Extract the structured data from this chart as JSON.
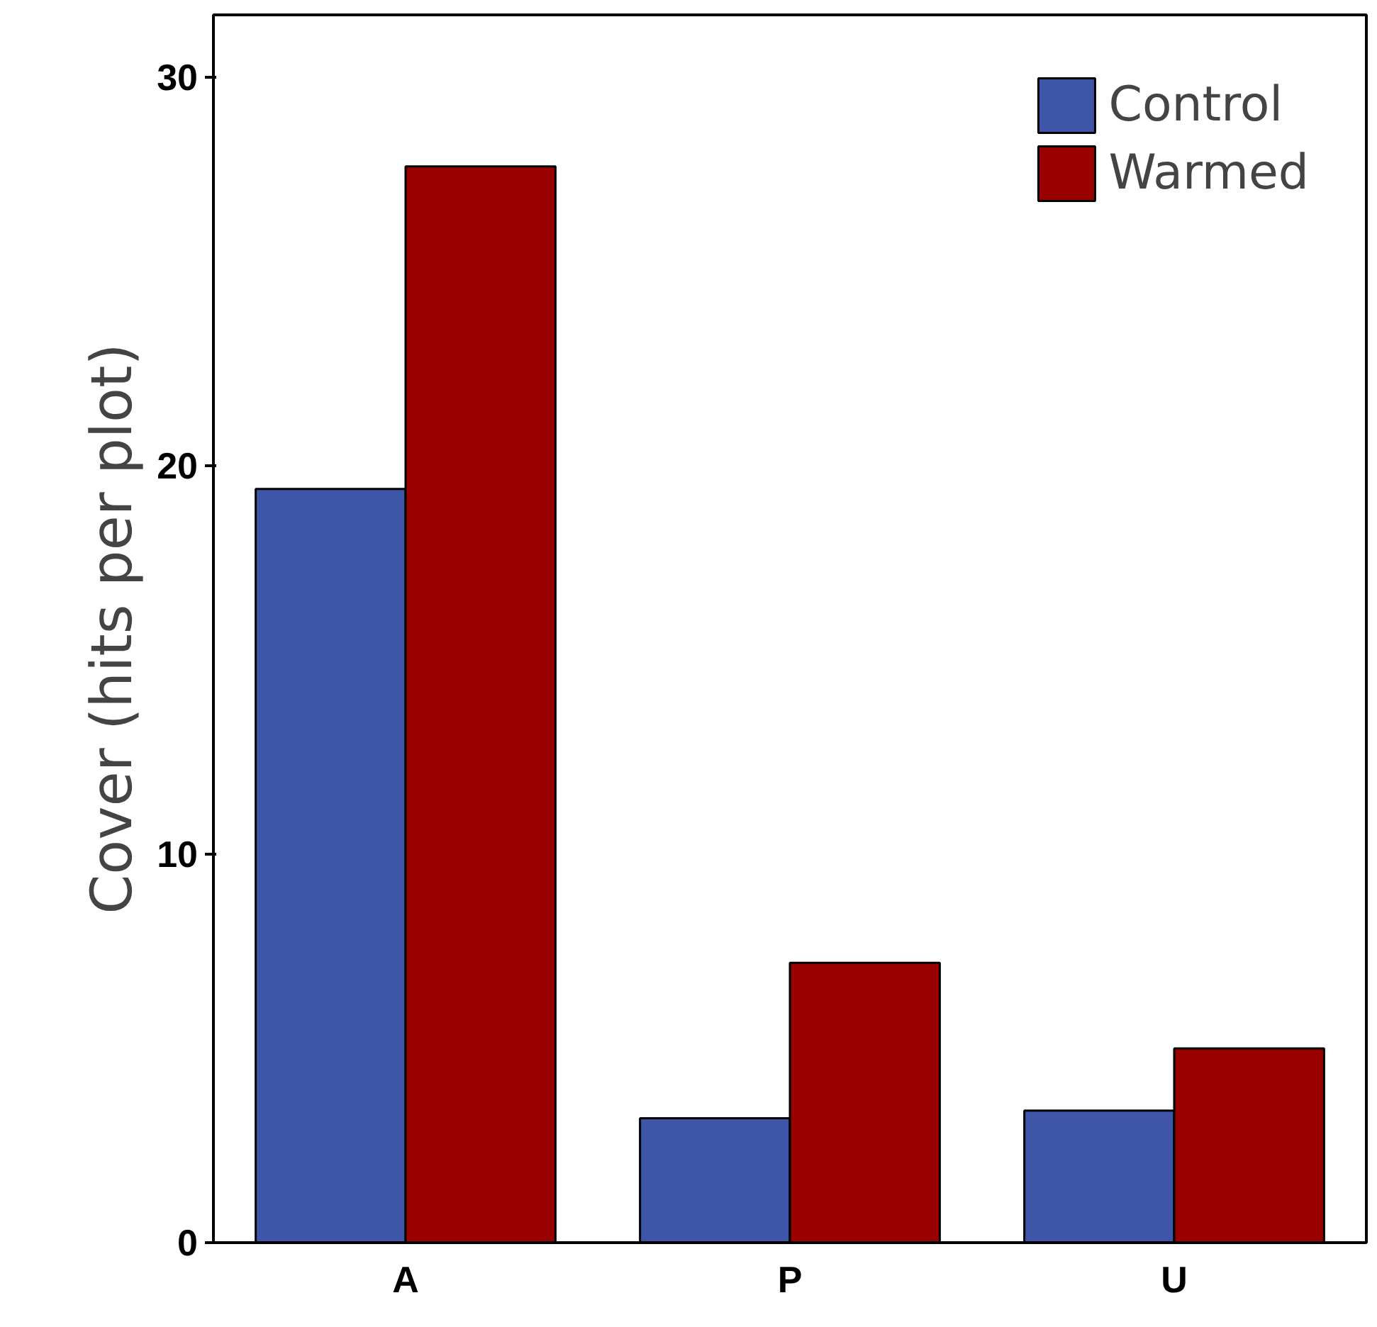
{
  "chart_data": {
    "type": "bar",
    "categories": [
      "A",
      "P",
      "U"
    ],
    "ylabel": "Cover (hits per plot)",
    "series": [
      {
        "name": "Control",
        "color": "#3f56a8",
        "values": [
          19.4,
          3.2,
          3.4
        ]
      },
      {
        "name": "Warmed",
        "color": "#990000",
        "values": [
          27.7,
          7.2,
          5.0
        ]
      }
    ],
    "ylim": [
      0,
      31.6
    ],
    "yticks": [
      0,
      10,
      20,
      30
    ],
    "legend": "top right",
    "grid": false
  }
}
